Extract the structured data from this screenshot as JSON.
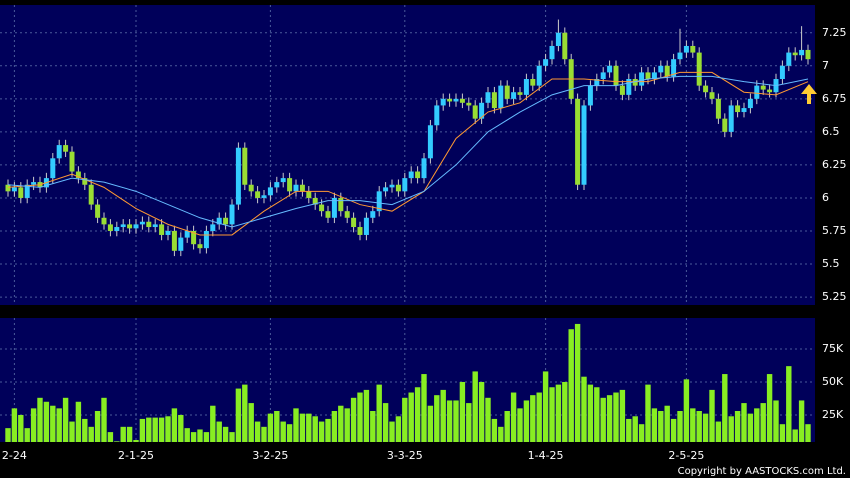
{
  "chart_data": [
    {
      "type": "candlestick",
      "up_color": "#33ccff",
      "down_color": "#99dd33",
      "ylim": [
        5.19,
        7.46
      ],
      "yticks": [
        5.25,
        5.5,
        5.75,
        6,
        6.25,
        6.5,
        6.75,
        7,
        7.25
      ],
      "grid": true,
      "ohlc": [
        [
          6.1,
          6.14,
          6.01,
          6.05
        ],
        [
          6.05,
          6.12,
          6.01,
          6.08
        ],
        [
          6.08,
          6.12,
          5.96,
          6.0
        ],
        [
          6.0,
          6.14,
          5.96,
          6.1
        ],
        [
          6.1,
          6.16,
          6.06,
          6.12
        ],
        [
          6.12,
          6.16,
          6.04,
          6.08
        ],
        [
          6.08,
          6.19,
          6.04,
          6.15
        ],
        [
          6.15,
          6.34,
          6.11,
          6.3
        ],
        [
          6.3,
          6.44,
          6.26,
          6.4
        ],
        [
          6.4,
          6.44,
          6.31,
          6.35
        ],
        [
          6.35,
          6.39,
          6.16,
          6.2
        ],
        [
          6.2,
          6.24,
          6.11,
          6.15
        ],
        [
          6.15,
          6.19,
          6.06,
          6.1
        ],
        [
          6.1,
          6.14,
          5.91,
          5.95
        ],
        [
          5.95,
          5.99,
          5.81,
          5.85
        ],
        [
          5.85,
          5.89,
          5.76,
          5.8
        ],
        [
          5.8,
          5.84,
          5.71,
          5.75
        ],
        [
          5.75,
          5.82,
          5.71,
          5.78
        ],
        [
          5.78,
          5.84,
          5.74,
          5.8
        ],
        [
          5.8,
          5.84,
          5.73,
          5.77
        ],
        [
          5.77,
          5.84,
          5.73,
          5.8
        ],
        [
          5.8,
          5.86,
          5.76,
          5.82
        ],
        [
          5.82,
          5.86,
          5.74,
          5.78
        ],
        [
          5.78,
          5.84,
          5.74,
          5.8
        ],
        [
          5.8,
          5.84,
          5.68,
          5.72
        ],
        [
          5.72,
          5.79,
          5.68,
          5.75
        ],
        [
          5.75,
          5.79,
          5.56,
          5.6
        ],
        [
          5.6,
          5.74,
          5.56,
          5.7
        ],
        [
          5.7,
          5.79,
          5.66,
          5.75
        ],
        [
          5.75,
          5.79,
          5.61,
          5.65
        ],
        [
          5.65,
          5.69,
          5.58,
          5.62
        ],
        [
          5.62,
          5.79,
          5.58,
          5.75
        ],
        [
          5.75,
          5.84,
          5.71,
          5.8
        ],
        [
          5.8,
          5.89,
          5.76,
          5.85
        ],
        [
          5.85,
          5.89,
          5.76,
          5.8
        ],
        [
          5.8,
          5.99,
          5.76,
          5.95
        ],
        [
          5.95,
          6.42,
          5.91,
          6.38
        ],
        [
          6.38,
          6.42,
          6.06,
          6.1
        ],
        [
          6.1,
          6.14,
          6.01,
          6.05
        ],
        [
          6.05,
          6.09,
          5.96,
          6.0
        ],
        [
          6.0,
          6.06,
          5.96,
          6.02
        ],
        [
          6.02,
          6.12,
          5.98,
          6.08
        ],
        [
          6.08,
          6.16,
          6.04,
          6.12
        ],
        [
          6.12,
          6.19,
          6.08,
          6.15
        ],
        [
          6.15,
          6.19,
          6.01,
          6.05
        ],
        [
          6.05,
          6.14,
          6.01,
          6.1
        ],
        [
          6.1,
          6.14,
          6.01,
          6.05
        ],
        [
          6.05,
          6.09,
          5.96,
          6.0
        ],
        [
          6.0,
          6.04,
          5.91,
          5.95
        ],
        [
          5.95,
          5.99,
          5.86,
          5.9
        ],
        [
          5.9,
          5.94,
          5.81,
          5.85
        ],
        [
          5.85,
          6.04,
          5.81,
          6.0
        ],
        [
          6.0,
          6.04,
          5.86,
          5.9
        ],
        [
          5.9,
          5.94,
          5.81,
          5.85
        ],
        [
          5.85,
          5.89,
          5.74,
          5.78
        ],
        [
          5.78,
          5.82,
          5.68,
          5.72
        ],
        [
          5.72,
          5.89,
          5.68,
          5.85
        ],
        [
          5.85,
          5.94,
          5.81,
          5.9
        ],
        [
          5.9,
          6.09,
          5.86,
          6.05
        ],
        [
          6.05,
          6.12,
          6.01,
          6.08
        ],
        [
          6.08,
          6.14,
          6.04,
          6.1
        ],
        [
          6.1,
          6.14,
          6.01,
          6.05
        ],
        [
          6.05,
          6.19,
          6.01,
          6.15
        ],
        [
          6.15,
          6.24,
          6.11,
          6.2
        ],
        [
          6.2,
          6.24,
          6.11,
          6.15
        ],
        [
          6.15,
          6.34,
          6.11,
          6.3
        ],
        [
          6.3,
          6.59,
          6.26,
          6.55
        ],
        [
          6.55,
          6.74,
          6.51,
          6.7
        ],
        [
          6.7,
          6.79,
          6.66,
          6.75
        ],
        [
          6.75,
          6.79,
          6.69,
          6.73
        ],
        [
          6.73,
          6.79,
          6.69,
          6.75
        ],
        [
          6.75,
          6.79,
          6.68,
          6.72
        ],
        [
          6.72,
          6.76,
          6.66,
          6.7
        ],
        [
          6.7,
          6.74,
          6.56,
          6.6
        ],
        [
          6.6,
          6.76,
          6.56,
          6.72
        ],
        [
          6.72,
          6.84,
          6.68,
          6.8
        ],
        [
          6.8,
          6.84,
          6.64,
          6.68
        ],
        [
          6.68,
          6.89,
          6.64,
          6.85
        ],
        [
          6.85,
          6.89,
          6.71,
          6.75
        ],
        [
          6.75,
          6.84,
          6.71,
          6.8
        ],
        [
          6.8,
          6.84,
          6.74,
          6.78
        ],
        [
          6.78,
          6.94,
          6.74,
          6.9
        ],
        [
          6.9,
          6.94,
          6.81,
          6.85
        ],
        [
          6.85,
          7.04,
          6.81,
          7.0
        ],
        [
          7.0,
          7.09,
          6.96,
          7.05
        ],
        [
          7.05,
          7.19,
          7.01,
          7.15
        ],
        [
          7.15,
          7.35,
          7.11,
          7.25
        ],
        [
          7.25,
          7.29,
          7.01,
          7.05
        ],
        [
          7.05,
          7.09,
          6.71,
          6.75
        ],
        [
          6.75,
          6.79,
          6.06,
          6.1
        ],
        [
          6.1,
          6.74,
          6.06,
          6.7
        ],
        [
          6.7,
          6.89,
          6.66,
          6.85
        ],
        [
          6.85,
          6.94,
          6.81,
          6.9
        ],
        [
          6.9,
          6.99,
          6.86,
          6.95
        ],
        [
          6.95,
          7.04,
          6.91,
          7.0
        ],
        [
          7.0,
          7.04,
          6.81,
          6.85
        ],
        [
          6.85,
          6.89,
          6.74,
          6.78
        ],
        [
          6.78,
          6.94,
          6.74,
          6.9
        ],
        [
          6.9,
          6.94,
          6.81,
          6.85
        ],
        [
          6.85,
          6.99,
          6.81,
          6.95
        ],
        [
          6.95,
          6.99,
          6.86,
          6.9
        ],
        [
          6.9,
          6.99,
          6.86,
          6.95
        ],
        [
          6.95,
          7.04,
          6.91,
          7.0
        ],
        [
          7.0,
          7.04,
          6.88,
          6.92
        ],
        [
          6.92,
          7.09,
          6.88,
          7.05
        ],
        [
          7.05,
          7.28,
          7.01,
          7.1
        ],
        [
          7.1,
          7.19,
          7.06,
          7.15
        ],
        [
          7.15,
          7.19,
          7.06,
          7.1
        ],
        [
          7.1,
          7.14,
          6.81,
          6.85
        ],
        [
          6.85,
          6.89,
          6.76,
          6.8
        ],
        [
          6.8,
          6.84,
          6.71,
          6.75
        ],
        [
          6.75,
          6.79,
          6.56,
          6.6
        ],
        [
          6.6,
          6.64,
          6.46,
          6.5
        ],
        [
          6.5,
          6.74,
          6.46,
          6.7
        ],
        [
          6.7,
          6.74,
          6.61,
          6.65
        ],
        [
          6.65,
          6.72,
          6.61,
          6.68
        ],
        [
          6.68,
          6.79,
          6.64,
          6.75
        ],
        [
          6.75,
          6.89,
          6.71,
          6.85
        ],
        [
          6.85,
          6.89,
          6.78,
          6.82
        ],
        [
          6.82,
          6.86,
          6.76,
          6.8
        ],
        [
          6.8,
          6.94,
          6.76,
          6.9
        ],
        [
          6.9,
          7.04,
          6.86,
          7.0
        ],
        [
          7.0,
          7.14,
          6.96,
          7.1
        ],
        [
          7.1,
          7.14,
          7.04,
          7.08
        ],
        [
          7.08,
          7.3,
          7.04,
          7.12
        ],
        [
          7.12,
          7.16,
          7.01,
          7.05
        ]
      ],
      "lines": [
        {
          "color": "#ff9933",
          "x": [
            0,
            5,
            10,
            15,
            20,
            25,
            30,
            35,
            40,
            45,
            50,
            55,
            60,
            65,
            70,
            75,
            80,
            85,
            90,
            95,
            100,
            105,
            110,
            115,
            120,
            125
          ],
          "values": [
            6.08,
            6.1,
            6.18,
            6.08,
            5.92,
            5.8,
            5.72,
            5.72,
            5.9,
            6.05,
            6.05,
            5.95,
            5.9,
            6.05,
            6.45,
            6.65,
            6.72,
            6.9,
            6.9,
            6.88,
            6.88,
            6.95,
            6.95,
            6.8,
            6.78,
            6.88
          ]
        },
        {
          "color": "#66bbff",
          "x": [
            0,
            5,
            10,
            15,
            20,
            25,
            30,
            35,
            40,
            45,
            50,
            55,
            60,
            65,
            70,
            75,
            80,
            85,
            90,
            95,
            100,
            105,
            110,
            115,
            120,
            125
          ],
          "values": [
            6.1,
            6.08,
            6.15,
            6.12,
            6.05,
            5.95,
            5.85,
            5.78,
            5.85,
            5.92,
            5.98,
            5.98,
            5.95,
            6.05,
            6.25,
            6.5,
            6.65,
            6.78,
            6.85,
            6.85,
            6.9,
            6.92,
            6.92,
            6.88,
            6.85,
            6.9
          ]
        }
      ]
    },
    {
      "type": "bar",
      "color": "#88ee22",
      "ylim": [
        4500,
        98500
      ],
      "yticks": [
        {
          "value": 25000,
          "label": "25K"
        },
        {
          "value": 50000,
          "label": "50K"
        },
        {
          "value": 75000,
          "label": "75K"
        }
      ],
      "grid": true,
      "categories": [
        null,
        "2-24",
        null,
        null,
        null,
        null,
        null,
        null,
        null,
        null,
        null,
        null,
        null,
        null,
        null,
        null,
        null,
        null,
        null,
        null,
        "2-1-25",
        null,
        null,
        null,
        null,
        null,
        null,
        null,
        null,
        null,
        null,
        null,
        null,
        null,
        null,
        null,
        null,
        null,
        null,
        null,
        null,
        "3-2-25",
        null,
        null,
        null,
        null,
        null,
        null,
        null,
        null,
        null,
        null,
        null,
        null,
        null,
        null,
        null,
        null,
        null,
        null,
        null,
        null,
        "3-3-25",
        null,
        null,
        null,
        null,
        null,
        null,
        null,
        null,
        null,
        null,
        null,
        null,
        null,
        null,
        null,
        null,
        null,
        null,
        null,
        null,
        null,
        "1-4-25",
        null,
        null,
        null,
        null,
        null,
        null,
        null,
        null,
        null,
        null,
        null,
        null,
        null,
        null,
        null,
        null,
        null,
        null,
        null,
        null,
        null,
        "2-5-25",
        null,
        null,
        null,
        null,
        null,
        null,
        null,
        null,
        null,
        null,
        null,
        null,
        null,
        null,
        null,
        null,
        null,
        null,
        null
      ],
      "values": [
        15000,
        30000,
        25000,
        15000,
        30000,
        38000,
        35000,
        32000,
        30000,
        38000,
        20000,
        35000,
        22000,
        16000,
        28000,
        38000,
        12000,
        5000,
        16000,
        16000,
        6000,
        22000,
        23000,
        23000,
        23000,
        24000,
        30000,
        25000,
        15000,
        12000,
        14000,
        12000,
        32000,
        20000,
        16000,
        12000,
        45000,
        48000,
        34000,
        20000,
        16000,
        26000,
        28000,
        20000,
        18000,
        30000,
        26000,
        26000,
        24000,
        20000,
        22000,
        28000,
        32000,
        30000,
        38000,
        42000,
        44000,
        28000,
        48000,
        34000,
        20000,
        24000,
        38000,
        42000,
        46000,
        56000,
        32000,
        40000,
        44000,
        36000,
        36000,
        50000,
        34000,
        58000,
        50000,
        38000,
        22000,
        16000,
        28000,
        42000,
        30000,
        36000,
        40000,
        42000,
        58000,
        46000,
        48000,
        50000,
        90000,
        94000,
        54000,
        48000,
        46000,
        38000,
        40000,
        42000,
        44000,
        22000,
        24000,
        18000,
        48000,
        30000,
        28000,
        32000,
        22000,
        28000,
        52000,
        30000,
        28000,
        26000,
        44000,
        20000,
        56000,
        24000,
        28000,
        34000,
        26000,
        30000,
        34000,
        56000,
        36000,
        18000,
        62000,
        14000,
        36000,
        18000
      ]
    },
    {
      "type": "text",
      "text": "Copyright by AASTOCKS.com Ltd."
    }
  ]
}
